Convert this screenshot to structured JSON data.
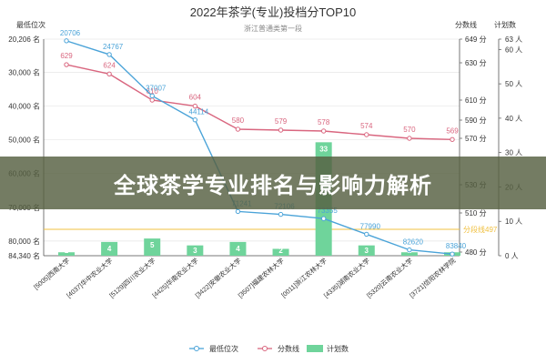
{
  "chart_data": {
    "type": "bar+line",
    "title": "2022年茶学(专业)投档分TOP10",
    "subtitle": "浙江普通类第一段",
    "categories": [
      "[5005]西南大学",
      "[4037]华中农业大学",
      "[5129]四川农业大学",
      "[4425]华南农业大学",
      "[3422]安徽农业大学",
      "[3507]福建农林大学",
      "[0011]浙江农林大学",
      "[4335]湖南农业大学",
      "[5320]云南农业大学",
      "[3721]信阳农林学院"
    ],
    "series": [
      {
        "name": "最低位次",
        "axis": "rank",
        "values": [
          20706,
          24767,
          37007,
          44114,
          71241,
          72106,
          73355,
          77990,
          82620,
          83840
        ]
      },
      {
        "name": "分数线",
        "axis": "score",
        "values": [
          629,
          624,
          610,
          604,
          580,
          579,
          578,
          574,
          570,
          569
        ]
      },
      {
        "name": "计划数",
        "axis": "plan",
        "values": [
          1,
          4,
          5,
          3,
          4,
          2,
          33,
          3,
          1,
          1
        ]
      }
    ],
    "axes": {
      "rank": {
        "title": "最低位次",
        "ticks": [
          "20,206 名",
          "30,000 名",
          "40,000 名",
          "50,000 名",
          "60,000 名",
          "70,000 名",
          "80,000 名",
          "84,340 名"
        ],
        "range": [
          20206,
          84340
        ]
      },
      "score": {
        "title": "分数线",
        "ticks": [
          "649 分",
          "630 分",
          "610 分",
          "590 分",
          "570 分",
          "530 分",
          "510 分",
          "480 分"
        ],
        "range": [
          480,
          649
        ]
      },
      "plan": {
        "title": "计划数",
        "ticks": [
          "63 人",
          "60 人",
          "50 人",
          "40 人",
          "30 人",
          "20 人",
          "10 人",
          "0 人"
        ],
        "range": [
          0,
          63
        ]
      }
    },
    "reference_line": {
      "label": "分段线497",
      "value": 497
    },
    "legend": [
      "最低位次",
      "分数线",
      "计划数"
    ]
  },
  "colors": {
    "rank": "#4aa3d8",
    "score": "#d9667f",
    "plan": "#6fd49b",
    "reference": "#f0c040"
  },
  "overlay": {
    "text": "全球茶学专业排名与影响力解析"
  }
}
